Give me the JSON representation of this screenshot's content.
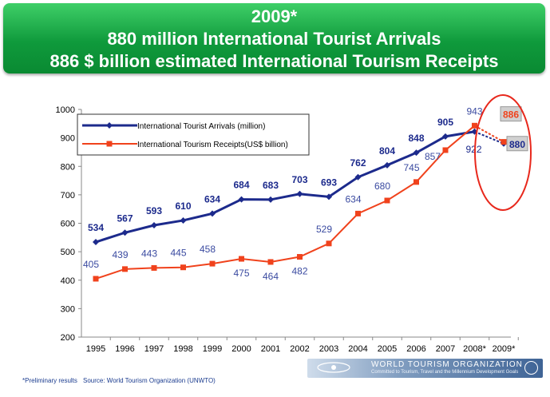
{
  "banner": {
    "line1": "2009*",
    "line2": "880 million International Tourist Arrivals",
    "line3": "886 $ billion estimated International Tourism Receipts"
  },
  "colors": {
    "arrivals": "#1c2a8c",
    "receipts": "#f0421c",
    "highlight_ellipse": "#e8281c",
    "banner": "#119b3d"
  },
  "chart_data": {
    "type": "line",
    "categories": [
      "1995",
      "1996",
      "1997",
      "1998",
      "1999",
      "2000",
      "2001",
      "2002",
      "2003",
      "2004",
      "2005",
      "2006",
      "2007",
      "2008*",
      "2009*"
    ],
    "ylim": [
      200,
      1000
    ],
    "yticks": [
      200,
      300,
      400,
      500,
      600,
      700,
      800,
      900,
      1000
    ],
    "grid": false,
    "legend_position": "top-left",
    "series": [
      {
        "name": "International Tourist Arrivals (million)",
        "values": [
          534,
          567,
          593,
          610,
          634,
          684,
          683,
          703,
          693,
          762,
          804,
          848,
          905,
          922,
          880
        ],
        "labels": [
          "534",
          "567",
          "593",
          "610",
          "634",
          "684",
          "683",
          "703",
          "693",
          "762",
          "804",
          "848",
          "905",
          "922",
          "880"
        ]
      },
      {
        "name": "International Tourism Receipts(US$ billion)",
        "values": [
          405,
          439,
          443,
          445,
          458,
          475,
          464,
          482,
          529,
          634,
          680,
          745,
          857,
          943,
          886
        ],
        "labels": [
          "405",
          "439",
          "443",
          "445",
          "458",
          "475",
          "464",
          "482",
          "529",
          "634",
          "680",
          "745",
          "857",
          "943",
          "886"
        ]
      }
    ]
  },
  "footer": {
    "note": "*Preliminary results",
    "source": "Source: World Tourism Organization (UNWTO)",
    "org_name": "WORLD TOURISM ORGANIZATION",
    "org_tagline": "Committed to Tourism, Travel and the Millennium Development Goals"
  }
}
